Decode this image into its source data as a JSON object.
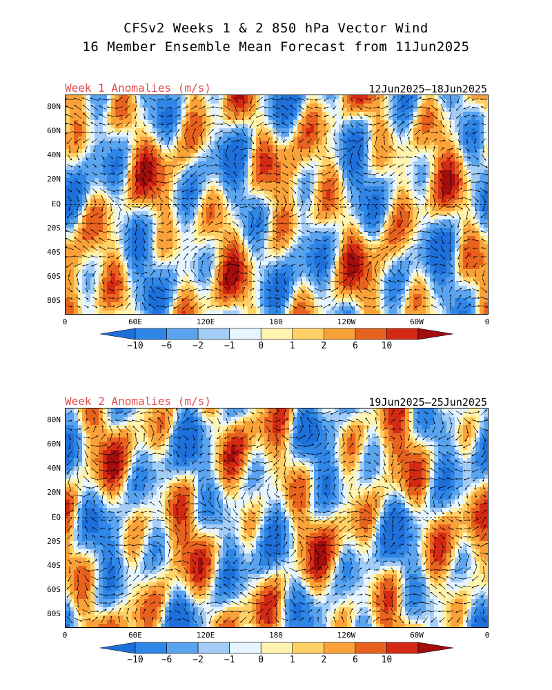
{
  "header": {
    "line1": "CFSv2 Weeks 1 & 2 850 hPa Vector Wind",
    "line2": "16 Member Ensemble Mean Forecast from 11Jun2025"
  },
  "panels": [
    {
      "label": "Week 1 Anomalies (m/s)",
      "dates": "12Jun2025—18Jun2025"
    },
    {
      "label": "Week 2 Anomalies (m/s)",
      "dates": "19Jun2025—25Jun2025"
    }
  ],
  "lat_ticks": [
    "80N",
    "60N",
    "40N",
    "20N",
    "EQ",
    "20S",
    "40S",
    "60S",
    "80S"
  ],
  "lon_ticks": [
    "0",
    "60E",
    "120E",
    "180",
    "120W",
    "60W",
    "0"
  ],
  "colorbar": {
    "labels": [
      "-10",
      "-6",
      "-2",
      "-1",
      "0",
      "1",
      "2",
      "6",
      "10"
    ],
    "colors": [
      "#1e6fd9",
      "#2f86e6",
      "#5aa3ef",
      "#a3cdf7",
      "#e6f5ff",
      "#fff3b0",
      "#ffd066",
      "#f9a23a",
      "#e8621f",
      "#d42a14",
      "#a30d0d"
    ]
  }
}
